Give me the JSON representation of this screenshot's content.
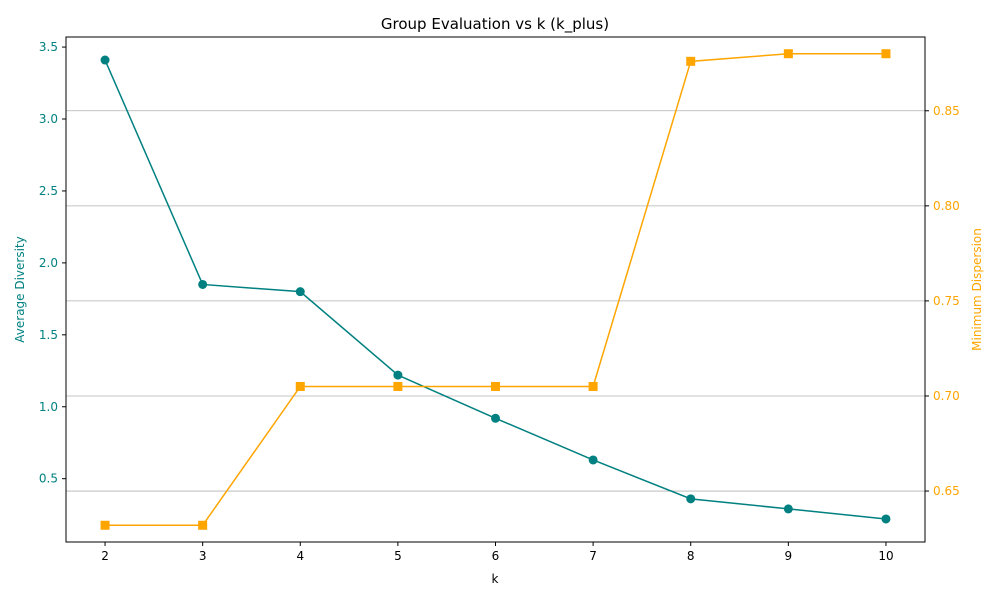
{
  "chart_data": {
    "type": "line",
    "title": "Group Evaluation vs k (k_plus)",
    "xlabel": "k",
    "x": [
      2,
      3,
      4,
      5,
      6,
      7,
      8,
      9,
      10
    ],
    "x_ticks": [
      "2",
      "3",
      "4",
      "5",
      "6",
      "7",
      "8",
      "9",
      "10"
    ],
    "xlim": [
      1.6,
      10.4
    ],
    "series": [
      {
        "axis": "left",
        "marker": "circle",
        "color": "#008080",
        "values": [
          3.41,
          1.85,
          1.8,
          1.22,
          0.92,
          0.63,
          0.36,
          0.29,
          0.22
        ]
      },
      {
        "axis": "right",
        "marker": "square",
        "color": "#FFA500",
        "values": [
          0.632,
          0.632,
          0.705,
          0.705,
          0.705,
          0.705,
          0.876,
          0.88,
          0.88
        ]
      }
    ],
    "left_axis": {
      "label": "Average Diversity",
      "color": "#008080",
      "ylim": [
        0.06,
        3.57
      ],
      "ticks": [
        0.5,
        1.0,
        1.5,
        2.0,
        2.5,
        3.0,
        3.5
      ],
      "tick_labels": [
        "0.5",
        "1.0",
        "1.5",
        "2.0",
        "2.5",
        "3.0",
        "3.5"
      ]
    },
    "right_axis": {
      "label": "Minimum Dispersion",
      "color": "#FFA500",
      "ylim": [
        0.6232,
        0.8888
      ],
      "ticks": [
        0.65,
        0.7,
        0.75,
        0.8,
        0.85
      ],
      "tick_labels": [
        "0.65",
        "0.70",
        "0.75",
        "0.80",
        "0.85"
      ]
    },
    "grid": "horizontal, right axis"
  }
}
